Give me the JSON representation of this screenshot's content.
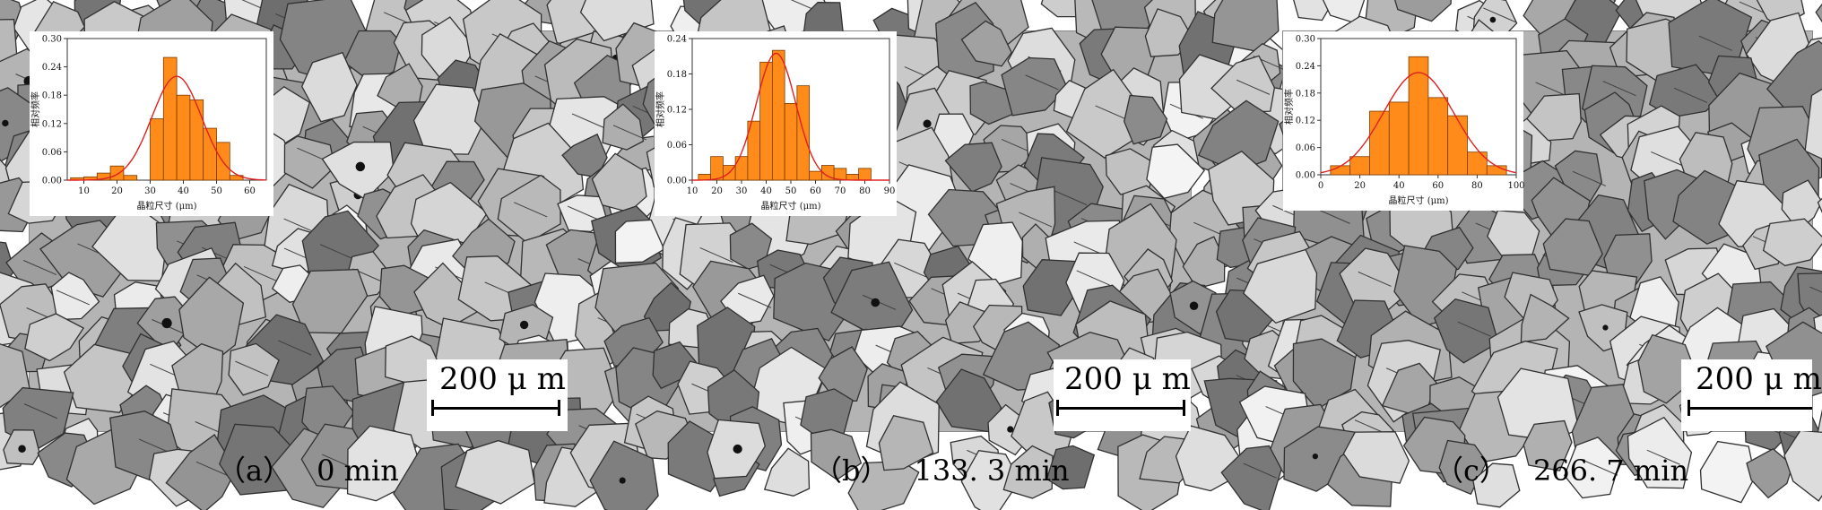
{
  "panels": [
    {
      "caption_letter": "（a）",
      "caption_time": "0 min",
      "scale_label": "200 μ m",
      "chart_data": {
        "type": "bar",
        "ylabel": "相对频率",
        "xlabel": "晶粒尺寸 (μm)",
        "x_ticks": [
          10,
          20,
          30,
          40,
          50,
          60
        ],
        "y_ticks": [
          "0.00",
          "0.06",
          "0.12",
          "0.18",
          "0.24",
          "0.30"
        ],
        "xlim": [
          5,
          65
        ],
        "ylim": [
          0,
          0.3
        ],
        "bin_width": 4,
        "bins_center": [
          8,
          12,
          16,
          20,
          24,
          28,
          32,
          36,
          40,
          44,
          48,
          52,
          56,
          60
        ],
        "values": [
          0.005,
          0.007,
          0.015,
          0.03,
          0.01,
          0.0,
          0.13,
          0.26,
          0.18,
          0.17,
          0.11,
          0.08,
          0.01,
          0.0
        ],
        "fit_curve": {
          "type": "gaussian",
          "mean": 38,
          "sigma": 7.5,
          "peak": 0.22
        }
      }
    },
    {
      "caption_letter": "（b）",
      "caption_time": "133. 3 min",
      "scale_label": "200 μ m",
      "chart_data": {
        "type": "bar",
        "ylabel": "相对频率",
        "xlabel": "晶粒尺寸 (μm)",
        "x_ticks": [
          10,
          20,
          30,
          40,
          50,
          60,
          70,
          80,
          90
        ],
        "y_ticks": [
          "0.00",
          "0.06",
          "0.12",
          "0.18",
          "0.24"
        ],
        "xlim": [
          10,
          90
        ],
        "ylim": [
          0,
          0.24
        ],
        "bin_width": 5,
        "bins_center": [
          15,
          20,
          25,
          30,
          35,
          40,
          45,
          50,
          55,
          60,
          65,
          70,
          75,
          80
        ],
        "values": [
          0.01,
          0.04,
          0.025,
          0.04,
          0.1,
          0.2,
          0.22,
          0.13,
          0.16,
          0.015,
          0.025,
          0.02,
          0.01,
          0.02
        ],
        "fit_curve": {
          "type": "gaussian",
          "mean": 44,
          "sigma": 8,
          "peak": 0.215
        }
      }
    },
    {
      "caption_letter": "（c）",
      "caption_time": "266. 7 min",
      "scale_label": "200 μ m",
      "chart_data": {
        "type": "bar",
        "ylabel": "相对频率",
        "xlabel": "晶粒尺寸 (μm)",
        "x_ticks": [
          0,
          20,
          40,
          60,
          80,
          100
        ],
        "y_ticks": [
          "0.00",
          "0.06",
          "0.12",
          "0.18",
          "0.24",
          "0.30"
        ],
        "xlim": [
          0,
          100
        ],
        "ylim": [
          0,
          0.3
        ],
        "bin_width": 10,
        "bins_center": [
          10,
          20,
          30,
          40,
          50,
          60,
          70,
          80,
          90
        ],
        "values": [
          0.02,
          0.04,
          0.14,
          0.16,
          0.26,
          0.17,
          0.13,
          0.05,
          0.02
        ],
        "fit_curve": {
          "type": "gaussian",
          "mean": 50,
          "sigma": 18,
          "peak": 0.225
        }
      }
    }
  ],
  "colors": {
    "bar_fill": "#ff8c1a",
    "bar_stroke": "#7a3a00",
    "fit_line": "#e02020",
    "grain_light": "#e6e6e6",
    "grain_dark": "#5a5a5a",
    "boundary": "#303030"
  }
}
